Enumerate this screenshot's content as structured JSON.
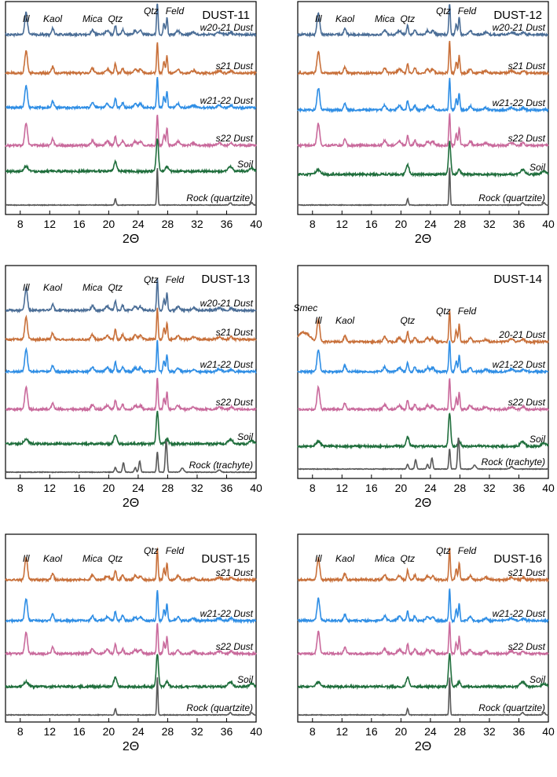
{
  "chart_data": [
    {
      "type": "line",
      "title": "DUST-11",
      "xlabel": "2Θ",
      "xlim": [
        6,
        40
      ],
      "x_ticks": [
        8,
        12,
        16,
        20,
        24,
        28,
        32,
        36,
        40
      ],
      "series": [
        {
          "name": "w20-21 Dust",
          "color": "#4a6d96"
        },
        {
          "name": "s21 Dust",
          "color": "#c8703a"
        },
        {
          "name": "w21-22 Dust",
          "color": "#2f8ee5"
        },
        {
          "name": "s22 Dust",
          "color": "#c96a9c"
        },
        {
          "name": "Soil",
          "color": "#1f6e3c"
        },
        {
          "name": "Rock (quartzite)",
          "color": "#595959"
        }
      ],
      "peak_labels": [
        {
          "text": "Ill",
          "x": 8.8
        },
        {
          "text": "Kaol",
          "x": 12.4
        },
        {
          "text": "Mica",
          "x": 17.8
        },
        {
          "text": "Qtz",
          "x": 20.9
        },
        {
          "text": "Qtz",
          "x": 26.6
        },
        {
          "text": "Feld",
          "x": 27.9
        }
      ]
    },
    {
      "type": "line",
      "title": "DUST-12",
      "xlabel": "2Θ",
      "xlim": [
        6,
        40
      ],
      "x_ticks": [
        8,
        12,
        16,
        20,
        24,
        28,
        32,
        36,
        40
      ],
      "series": [
        {
          "name": "w20-21 Dust",
          "color": "#4a6d96"
        },
        {
          "name": "s21 Dust",
          "color": "#c8703a"
        },
        {
          "name": "w21-22 Dust",
          "color": "#2f8ee5"
        },
        {
          "name": "s22 Dust",
          "color": "#c96a9c"
        },
        {
          "name": "Soil",
          "color": "#1f6e3c"
        },
        {
          "name": "Rock (quartzite)",
          "color": "#595959"
        }
      ],
      "peak_labels": [
        {
          "text": "Ill",
          "x": 8.8
        },
        {
          "text": "Kaol",
          "x": 12.4
        },
        {
          "text": "Mica",
          "x": 17.8
        },
        {
          "text": "Qtz",
          "x": 20.9
        },
        {
          "text": "Qtz",
          "x": 26.6
        },
        {
          "text": "Feld",
          "x": 27.9
        }
      ]
    },
    {
      "type": "line",
      "title": "DUST-13",
      "xlabel": "2Θ",
      "xlim": [
        6,
        40
      ],
      "x_ticks": [
        8,
        12,
        16,
        20,
        24,
        28,
        32,
        36,
        40
      ],
      "series": [
        {
          "name": "w20-21 Dust",
          "color": "#4a6d96"
        },
        {
          "name": "s21 Dust",
          "color": "#c8703a"
        },
        {
          "name": "w21-22 Dust",
          "color": "#2f8ee5"
        },
        {
          "name": "s22 Dust",
          "color": "#c96a9c"
        },
        {
          "name": "Soil",
          "color": "#1f6e3c"
        },
        {
          "name": "Rock (trachyte)",
          "color": "#595959"
        }
      ],
      "peak_labels": [
        {
          "text": "Ill",
          "x": 8.8
        },
        {
          "text": "Kaol",
          "x": 12.4
        },
        {
          "text": "Mica",
          "x": 17.8
        },
        {
          "text": "Qtz",
          "x": 20.9
        },
        {
          "text": "Qtz",
          "x": 26.6
        },
        {
          "text": "Feld",
          "x": 27.9
        }
      ]
    },
    {
      "type": "line",
      "title": "DUST-14",
      "xlabel": "2Θ",
      "xlim": [
        6,
        40
      ],
      "x_ticks": [
        8,
        12,
        16,
        20,
        24,
        28,
        32,
        36,
        40
      ],
      "series": [
        {
          "name": "20-21 Dust",
          "color": "#c8703a"
        },
        {
          "name": "w21-22 Dust",
          "color": "#2f8ee5"
        },
        {
          "name": "s22 Dust",
          "color": "#c96a9c"
        },
        {
          "name": "Soil",
          "color": "#1f6e3c"
        },
        {
          "name": "Rock (trachyte)",
          "color": "#595959"
        }
      ],
      "peak_labels": [
        {
          "text": "Smec",
          "x": 6.2
        },
        {
          "text": "Ill",
          "x": 8.8
        },
        {
          "text": "Kaol",
          "x": 12.4
        },
        {
          "text": "Qtz",
          "x": 20.9
        },
        {
          "text": "Qtz",
          "x": 26.6
        },
        {
          "text": "Feld",
          "x": 27.9
        }
      ]
    },
    {
      "type": "line",
      "title": "DUST-15",
      "xlabel": "2Θ",
      "xlim": [
        6,
        40
      ],
      "x_ticks": [
        8,
        12,
        16,
        20,
        24,
        28,
        32,
        36,
        40
      ],
      "series": [
        {
          "name": "s21 Dust",
          "color": "#c8703a"
        },
        {
          "name": "w21-22 Dust",
          "color": "#2f8ee5"
        },
        {
          "name": "s22 Dust",
          "color": "#c96a9c"
        },
        {
          "name": "Soil",
          "color": "#1f6e3c"
        },
        {
          "name": "Rock (quartzite)",
          "color": "#595959"
        }
      ],
      "peak_labels": [
        {
          "text": "Ill",
          "x": 8.8
        },
        {
          "text": "Kaol",
          "x": 12.4
        },
        {
          "text": "Mica",
          "x": 17.8
        },
        {
          "text": "Qtz",
          "x": 20.9
        },
        {
          "text": "Qtz",
          "x": 26.6
        },
        {
          "text": "Feld",
          "x": 27.9
        }
      ]
    },
    {
      "type": "line",
      "title": "DUST-16",
      "xlabel": "2Θ",
      "xlim": [
        6,
        40
      ],
      "x_ticks": [
        8,
        12,
        16,
        20,
        24,
        28,
        32,
        36,
        40
      ],
      "series": [
        {
          "name": "s21 Dust",
          "color": "#c8703a"
        },
        {
          "name": "w21-22 Dust",
          "color": "#2f8ee5"
        },
        {
          "name": "s22 Dust",
          "color": "#c96a9c"
        },
        {
          "name": "Soil",
          "color": "#1f6e3c"
        },
        {
          "name": "Rock (quartzite)",
          "color": "#595959"
        }
      ],
      "peak_labels": [
        {
          "text": "Ill",
          "x": 8.8
        },
        {
          "text": "Kaol",
          "x": 12.4
        },
        {
          "text": "Mica",
          "x": 17.8
        },
        {
          "text": "Qtz",
          "x": 20.9
        },
        {
          "text": "Qtz",
          "x": 26.6
        },
        {
          "text": "Feld",
          "x": 27.9
        }
      ]
    }
  ]
}
